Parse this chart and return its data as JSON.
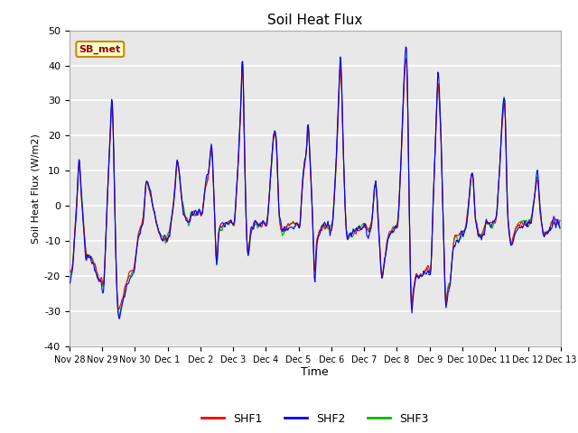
{
  "title": "Soil Heat Flux",
  "ylabel": "Soil Heat Flux (W/m2)",
  "xlabel": "Time",
  "ylim": [
    -40,
    50
  ],
  "colors": {
    "SHF1": "#ff0000",
    "SHF2": "#0000ff",
    "SHF3": "#00bb00"
  },
  "legend_labels": [
    "SHF1",
    "SHF2",
    "SHF3"
  ],
  "xtick_labels": [
    "Nov 28",
    "Nov 29",
    "Nov 30",
    "Dec 1",
    "Dec 2",
    "Dec 3",
    "Dec 4",
    "Dec 5",
    "Dec 6",
    "Dec 7",
    "Dec 8",
    "Dec 9",
    "Dec 10",
    "Dec 11",
    "Dec 12",
    "Dec 13"
  ],
  "ytick_values": [
    -40,
    -30,
    -20,
    -10,
    0,
    10,
    20,
    30,
    40,
    50
  ],
  "fig_bg_color": "#ffffff",
  "plot_bg_color": "#e8e8e8",
  "grid_color": "#ffffff",
  "annotation": "SB_met",
  "num_points": 720,
  "pts_per_day": 48
}
